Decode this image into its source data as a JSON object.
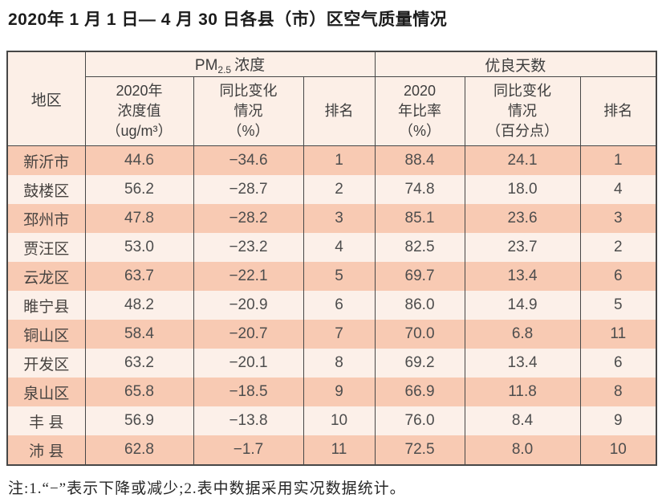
{
  "title": "2020年 1 月 1 日— 4 月 30 日各县（市）区空气质量情况",
  "footnote": "注:1.“−”表示下降或减少;2.表中数据采用实况数据统计。",
  "colors": {
    "row_dark": "#f8cab3",
    "row_light": "#fcf0e9",
    "header_bg": "#fcefe7",
    "border": "#474747",
    "text": "#4d4d4d"
  },
  "table": {
    "region_header": "地区",
    "groups": [
      {
        "label_prefix": "PM",
        "label_sub": "2.5",
        "label_suffix": "浓度"
      },
      {
        "label": "优良天数"
      }
    ],
    "sub_headers": [
      "2020年\n浓度值\n（ug/m³）",
      "同比变化\n情况\n（%）",
      "排名",
      "2020\n年比率\n（%）",
      "同比变化\n情况\n（百分点）",
      "排名"
    ],
    "rows": [
      {
        "region": "新沂市",
        "values": [
          "44.6",
          "−34.6",
          "1",
          "88.4",
          "24.1",
          "1"
        ]
      },
      {
        "region": "鼓楼区",
        "values": [
          "56.2",
          "−28.7",
          "2",
          "74.8",
          "18.0",
          "4"
        ]
      },
      {
        "region": "邳州市",
        "values": [
          "47.8",
          "−28.2",
          "3",
          "85.1",
          "23.6",
          "3"
        ]
      },
      {
        "region": "贾汪区",
        "values": [
          "53.0",
          "−23.2",
          "4",
          "82.5",
          "23.7",
          "2"
        ]
      },
      {
        "region": "云龙区",
        "values": [
          "63.7",
          "−22.1",
          "5",
          "69.7",
          "13.4",
          "6"
        ]
      },
      {
        "region": "睢宁县",
        "values": [
          "48.2",
          "−20.9",
          "6",
          "86.0",
          "14.9",
          "5"
        ]
      },
      {
        "region": "铜山区",
        "values": [
          "58.4",
          "−20.7",
          "7",
          "70.0",
          "6.8",
          "11"
        ]
      },
      {
        "region": "开发区",
        "values": [
          "63.2",
          "−20.1",
          "8",
          "69.2",
          "13.4",
          "6"
        ]
      },
      {
        "region": "泉山区",
        "values": [
          "65.8",
          "−18.5",
          "9",
          "66.9",
          "11.8",
          "8"
        ]
      },
      {
        "region": "丰 县",
        "values": [
          "56.9",
          "−13.8",
          "10",
          "76.0",
          "8.4",
          "9"
        ]
      },
      {
        "region": "沛 县",
        "values": [
          "62.8",
          "−1.7",
          "11",
          "72.5",
          "8.0",
          "10"
        ]
      }
    ]
  }
}
